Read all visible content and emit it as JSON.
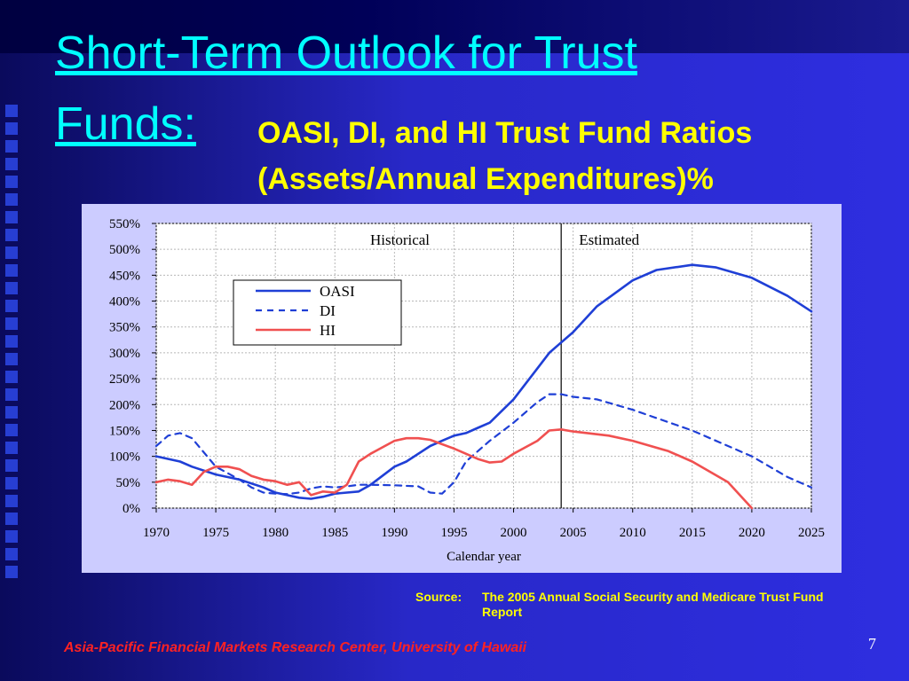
{
  "slide": {
    "title_line1": "Short-Term Outlook for Trust",
    "title_line2": "Funds:",
    "subtitle_line1": "OASI, DI, and HI Trust Fund Ratios",
    "subtitle_line2": "(Assets/Annual Expenditures)%",
    "source_label": "Source:",
    "source_text": "The 2005 Annual Social Security and Medicare Trust Fund Report",
    "footer": "Asia-Pacific Financial Markets Research Center, University of Hawaii",
    "page_number": "7"
  },
  "chart_data": {
    "type": "line",
    "xlabel": "Calendar year",
    "ylabel": "",
    "xlim": [
      1970,
      2025
    ],
    "ylim": [
      0,
      550
    ],
    "xticks": [
      1970,
      1975,
      1980,
      1985,
      1990,
      1995,
      2000,
      2005,
      2010,
      2015,
      2020,
      2025
    ],
    "xtick_labels": [
      "1970",
      "1975",
      "1980",
      "1985",
      "1990",
      "1995",
      "2000",
      "2005",
      "2010",
      "2015",
      "2020",
      "2025"
    ],
    "yticks": [
      0,
      50,
      100,
      150,
      200,
      250,
      300,
      350,
      400,
      450,
      500,
      550
    ],
    "ytick_labels": [
      "0%",
      "50%",
      "100%",
      "150%",
      "200%",
      "250%",
      "300%",
      "350%",
      "400%",
      "450%",
      "500%",
      "550%"
    ],
    "grid": true,
    "legend_position": "upper-left",
    "annotations": [
      {
        "text": "Historical",
        "x": 1994
      },
      {
        "text": "Estimated",
        "x": 2004
      }
    ],
    "divider_x": 2004,
    "series": [
      {
        "name": "OASI",
        "color": "#1f3fd6",
        "style": "solid",
        "x": [
          1970,
          1972,
          1973,
          1975,
          1977,
          1979,
          1980,
          1981,
          1982,
          1983,
          1984,
          1985,
          1987,
          1988,
          1990,
          1991,
          1993,
          1994,
          1995,
          1996,
          1997,
          1998,
          2000,
          2002,
          2003,
          2004,
          2005,
          2007,
          2010,
          2012,
          2015,
          2017,
          2020,
          2023,
          2025
        ],
        "y": [
          100,
          90,
          80,
          65,
          55,
          40,
          30,
          25,
          20,
          18,
          22,
          28,
          32,
          45,
          80,
          90,
          120,
          130,
          140,
          145,
          155,
          165,
          210,
          270,
          300,
          320,
          340,
          390,
          440,
          460,
          470,
          465,
          445,
          410,
          380
        ]
      },
      {
        "name": "DI",
        "color": "#1f3fd6",
        "style": "dashed",
        "x": [
          1970,
          1971,
          1972,
          1973,
          1975,
          1977,
          1978,
          1979,
          1980,
          1981,
          1982,
          1983,
          1984,
          1985,
          1986,
          1987,
          1988,
          1990,
          1992,
          1993,
          1994,
          1995,
          1996,
          1998,
          2000,
          2002,
          2003,
          2004,
          2005,
          2007,
          2010,
          2015,
          2020,
          2023,
          2025
        ],
        "y": [
          120,
          140,
          145,
          135,
          80,
          55,
          40,
          30,
          28,
          27,
          30,
          38,
          42,
          40,
          42,
          45,
          45,
          44,
          42,
          30,
          28,
          50,
          90,
          130,
          165,
          205,
          220,
          220,
          215,
          210,
          190,
          150,
          100,
          60,
          40
        ]
      },
      {
        "name": "HI",
        "color": "#f05050",
        "style": "solid",
        "x": [
          1970,
          1971,
          1972,
          1973,
          1974,
          1975,
          1976,
          1977,
          1978,
          1979,
          1980,
          1981,
          1982,
          1983,
          1984,
          1985,
          1986,
          1987,
          1988,
          1990,
          1991,
          1992,
          1993,
          1995,
          1997,
          1998,
          1999,
          2000,
          2002,
          2003,
          2004,
          2005,
          2008,
          2010,
          2013,
          2015,
          2018,
          2020
        ],
        "y": [
          50,
          55,
          52,
          45,
          70,
          80,
          80,
          75,
          62,
          55,
          52,
          45,
          50,
          25,
          32,
          30,
          45,
          90,
          105,
          130,
          135,
          135,
          132,
          115,
          95,
          88,
          90,
          105,
          130,
          150,
          152,
          148,
          140,
          130,
          110,
          90,
          50,
          0
        ]
      }
    ]
  }
}
